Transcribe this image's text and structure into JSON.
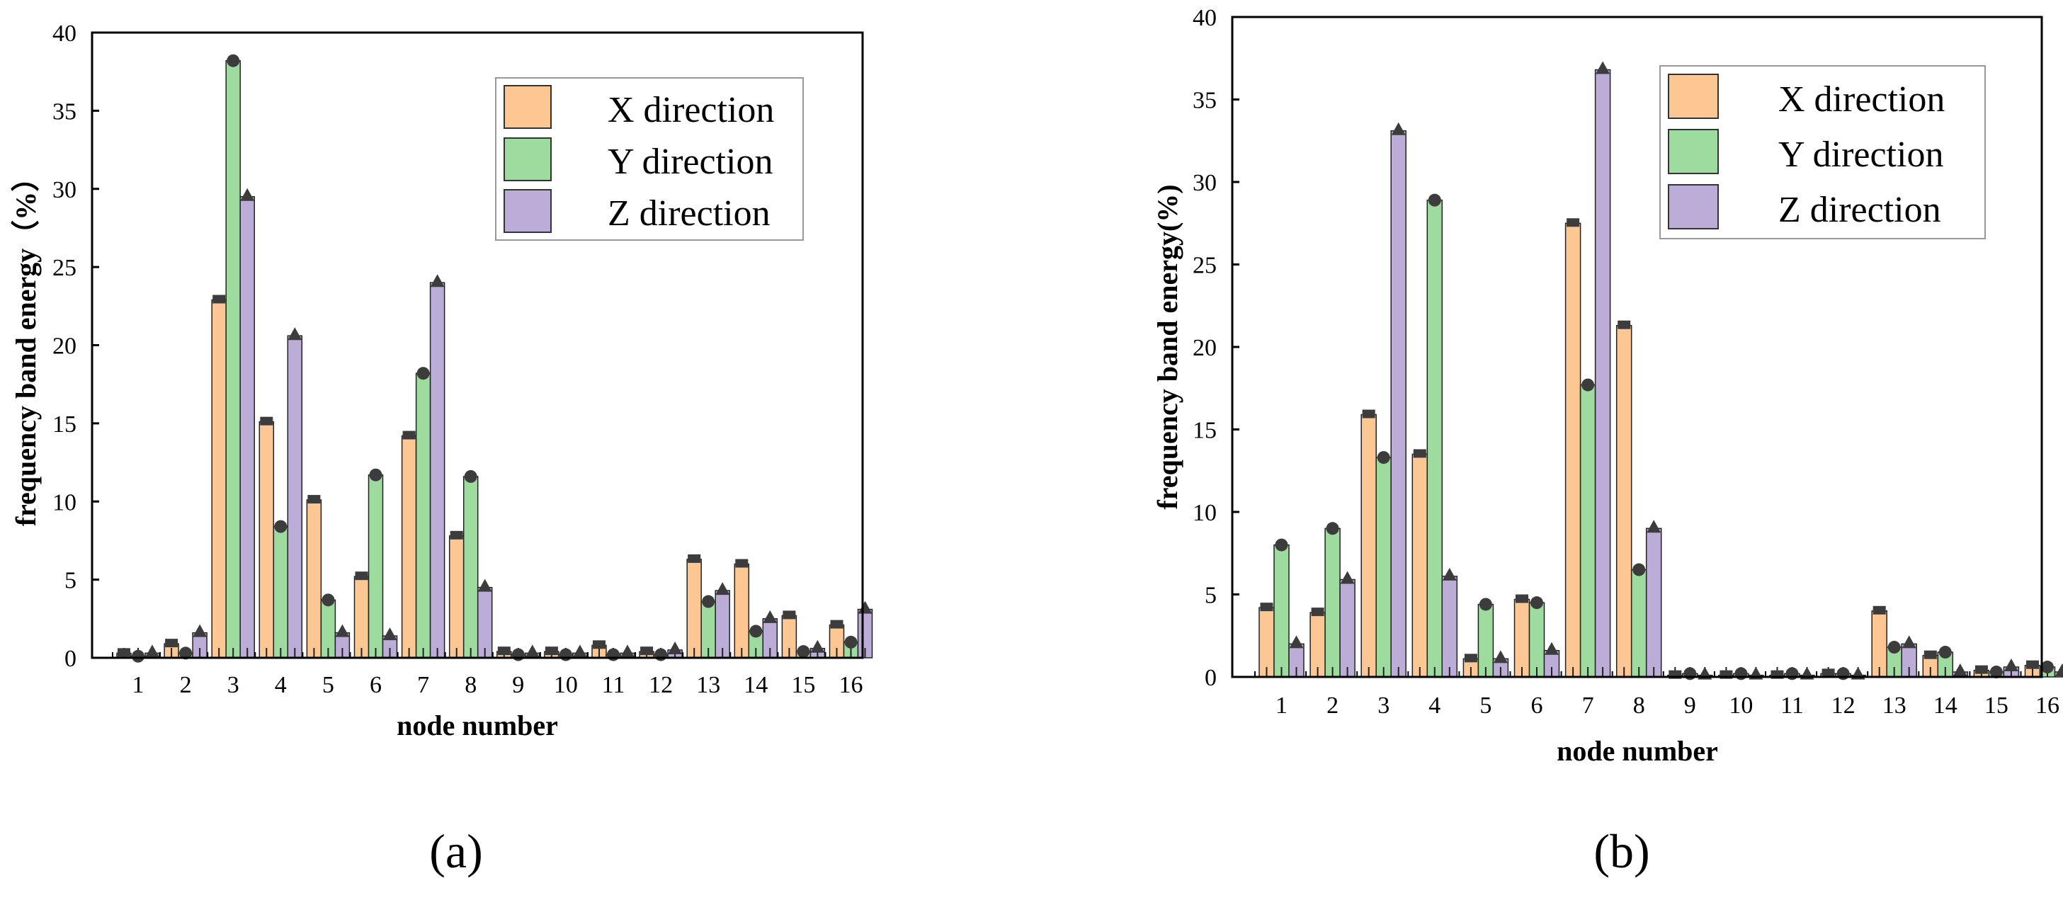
{
  "colors": {
    "x": "#FDC794",
    "y": "#9DDB9F",
    "z": "#BCADD8",
    "marker": "#3C3C3C",
    "axis": "#000000"
  },
  "chart_data": [
    {
      "type": "bar",
      "panel_label": "(a)",
      "xlabel": "node number",
      "ylabel": "frequency band energy（%）",
      "ylim": [
        0,
        40
      ],
      "yticks": [
        "0",
        "5",
        "10",
        "15",
        "20",
        "25",
        "30",
        "35",
        "40"
      ],
      "categories": [
        "1",
        "2",
        "3",
        "4",
        "5",
        "6",
        "7",
        "8",
        "9",
        "10",
        "11",
        "12",
        "13",
        "14",
        "15",
        "16"
      ],
      "legend_position": "top-right",
      "series": [
        {
          "name": "X direction",
          "marker": "square",
          "values": [
            0.3,
            0.9,
            22.9,
            15.1,
            10.1,
            5.2,
            14.2,
            7.8,
            0.4,
            0.4,
            0.8,
            0.4,
            6.3,
            6.0,
            2.7,
            2.1
          ]
        },
        {
          "name": "Y direction",
          "marker": "circle",
          "values": [
            0.1,
            0.3,
            38.2,
            8.4,
            3.7,
            11.7,
            18.2,
            11.6,
            0.2,
            0.2,
            0.2,
            0.2,
            3.6,
            1.7,
            0.4,
            1.0
          ]
        },
        {
          "name": "Z direction",
          "marker": "triangle",
          "values": [
            0.3,
            1.6,
            29.5,
            20.6,
            1.6,
            1.4,
            24.0,
            4.5,
            0.3,
            0.3,
            0.3,
            0.5,
            4.3,
            2.5,
            0.6,
            3.1
          ]
        }
      ]
    },
    {
      "type": "bar",
      "panel_label": "(b)",
      "xlabel": "node number",
      "ylabel": "frequency band energy(%)",
      "ylim": [
        0,
        40
      ],
      "yticks": [
        "0",
        "5",
        "10",
        "15",
        "20",
        "25",
        "30",
        "35",
        "40"
      ],
      "categories": [
        "1",
        "2",
        "3",
        "4",
        "5",
        "6",
        "7",
        "8",
        "9",
        "10",
        "11",
        "12",
        "13",
        "14",
        "15",
        "16"
      ],
      "legend_position": "top-right",
      "series": [
        {
          "name": "X direction",
          "marker": "square",
          "values": [
            4.2,
            3.9,
            15.9,
            13.5,
            1.1,
            4.7,
            27.5,
            21.3,
            0.1,
            0.1,
            0.1,
            0.2,
            4.0,
            1.3,
            0.4,
            0.7
          ]
        },
        {
          "name": "Y direction",
          "marker": "circle",
          "values": [
            8.0,
            9.0,
            13.3,
            28.9,
            4.4,
            4.5,
            17.7,
            6.5,
            0.2,
            0.2,
            0.2,
            0.2,
            1.8,
            1.5,
            0.3,
            0.6
          ]
        },
        {
          "name": "Z direction",
          "marker": "triangle",
          "values": [
            2.0,
            5.9,
            33.1,
            6.1,
            1.1,
            1.6,
            36.8,
            9.0,
            0.1,
            0.1,
            0.1,
            0.1,
            2.0,
            0.3,
            0.6,
            0.3
          ]
        }
      ]
    }
  ]
}
